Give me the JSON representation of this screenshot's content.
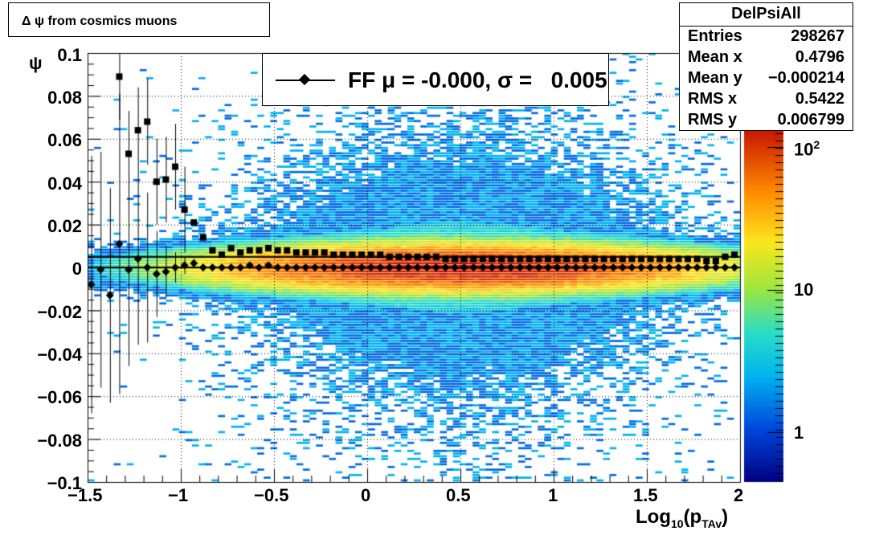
{
  "title": "Δ ψ from cosmics muons",
  "stats": {
    "name": "DelPsiAll",
    "rows": [
      {
        "label": "Entries",
        "value": "298267"
      },
      {
        "label": "Mean x",
        "value": "0.4796"
      },
      {
        "label": "Mean y",
        "value": "−0.000214"
      },
      {
        "label": "RMS x",
        "value": "0.5422"
      },
      {
        "label": "RMS y",
        "value": "0.006799"
      }
    ]
  },
  "legend": {
    "text": "FF μ = -0.000, σ =   0.005"
  },
  "chart_data": {
    "type": "heatmap",
    "xlabel": "Log10(pTAv)",
    "ylabel": "ψ",
    "xlim": [
      -1.5,
      2.0
    ],
    "ylim": [
      -0.1,
      0.1
    ],
    "xticks": [
      "−1.5",
      "−1",
      "−0.5",
      "0",
      "0.5",
      "1",
      "1.5",
      "2"
    ],
    "yticks": [
      "0.1",
      "0.08",
      "0.06",
      "0.04",
      "0.02",
      "0",
      "−0.02",
      "−0.04",
      "−0.06",
      "−0.08",
      "−0.1"
    ],
    "z_scale": "log",
    "z_ticks": [
      "1",
      "10",
      "10^2"
    ],
    "grid": true,
    "density_model": {
      "mean_y": -0.000214,
      "core_sigma_y": 0.005,
      "x_center": 0.5,
      "x_rms": 0.5422,
      "peak_counts": 300
    },
    "series": [
      {
        "name": "FF μ = -0.000, σ =   0.005",
        "marker": "diamond",
        "x": [
          -1.48,
          -1.43,
          -1.38,
          -1.33,
          -1.28,
          -1.23,
          -1.18,
          -1.13,
          -1.08,
          -1.03,
          -0.98,
          -0.93,
          -0.88,
          -0.83,
          -0.78,
          -0.73,
          -0.68,
          -0.63,
          -0.58,
          -0.53,
          -0.48,
          -0.43,
          -0.38,
          -0.33,
          -0.28,
          -0.23,
          -0.18,
          -0.13,
          -0.08,
          -0.03,
          0.02,
          0.07,
          0.12,
          0.17,
          0.22,
          0.27,
          0.32,
          0.37,
          0.42,
          0.47,
          0.52,
          0.57,
          0.62,
          0.67,
          0.72,
          0.77,
          0.82,
          0.87,
          0.92,
          0.97,
          1.02,
          1.07,
          1.12,
          1.17,
          1.22,
          1.27,
          1.32,
          1.37,
          1.42,
          1.47,
          1.52,
          1.57,
          1.62,
          1.67,
          1.72,
          1.77,
          1.82,
          1.87,
          1.92,
          1.97
        ],
        "y": [
          -0.008,
          -0.001,
          -0.013,
          0.011,
          -0.001,
          0.004,
          0.0,
          -0.003,
          -0.002,
          0.0,
          0.001,
          0.002,
          0.0,
          0.0,
          0.0,
          0.0,
          0.0,
          0.001,
          0.0,
          0.001,
          0.0,
          0.0,
          0.0,
          0.0,
          0.0,
          0.0,
          0.0,
          0.0,
          0.0,
          0.0,
          0.0,
          0.0,
          0.0,
          0.0,
          0.0,
          0.0,
          0.0,
          0.0,
          0.0,
          0.0,
          0.0,
          0.0,
          0.0,
          0.0,
          0.0,
          0.0,
          0.0,
          0.0,
          0.0,
          0.0,
          0.0,
          0.0,
          0.0,
          0.0,
          0.0,
          0.0,
          0.0,
          0.0,
          0.0,
          0.0,
          0.0,
          0.0,
          0.0,
          0.0,
          0.0,
          0.0,
          0.0,
          0.0,
          0.0,
          0.0
        ],
        "yerr": [
          0.06,
          0.055,
          0.05,
          0.07,
          0.045,
          0.04,
          0.035,
          0.02,
          0.012,
          0.007,
          0.004,
          0.002,
          0.001,
          0.001,
          0.001,
          0.001,
          0.001,
          0.001,
          0.001,
          0.001,
          0.001,
          0.001,
          0.001,
          0.001,
          0.001,
          0.001,
          0.001,
          0.001,
          0.001,
          0.001,
          0.001,
          0.001,
          0.001,
          0.001,
          0.001,
          0.001,
          0.001,
          0.001,
          0.001,
          0.001,
          0.001,
          0.001,
          0.001,
          0.001,
          0.001,
          0.001,
          0.001,
          0.001,
          0.001,
          0.001,
          0.001,
          0.001,
          0.001,
          0.001,
          0.001,
          0.001,
          0.001,
          0.001,
          0.001,
          0.001,
          0.001,
          0.001,
          0.001,
          0.001,
          0.001,
          0.001,
          0.001,
          0.001,
          0.001,
          0.001
        ]
      },
      {
        "name": "",
        "marker": "square",
        "x": [
          -1.33,
          -1.28,
          -1.23,
          -1.18,
          -1.13,
          -1.08,
          -1.03,
          -0.98,
          -0.93,
          -0.88,
          -0.83,
          -0.78,
          -0.73,
          -0.68,
          -0.63,
          -0.58,
          -0.53,
          -0.48,
          -0.43,
          -0.38,
          -0.33,
          -0.28,
          -0.23,
          -0.18,
          -0.13,
          -0.08,
          -0.03,
          0.02,
          0.07,
          0.12,
          0.17,
          0.22,
          0.27,
          0.32,
          0.37,
          0.42,
          0.47,
          0.52,
          0.57,
          0.62,
          0.67,
          0.72,
          0.77,
          0.82,
          0.87,
          0.92,
          0.97,
          1.02,
          1.07,
          1.12,
          1.17,
          1.22,
          1.27,
          1.32,
          1.37,
          1.42,
          1.47,
          1.52,
          1.57,
          1.62,
          1.67,
          1.72,
          1.77,
          1.82,
          1.87,
          1.92,
          1.97
        ],
        "y": [
          0.089,
          0.053,
          0.064,
          0.068,
          0.04,
          0.041,
          0.047,
          0.027,
          0.021,
          0.014,
          0.008,
          0.006,
          0.009,
          0.007,
          0.008,
          0.008,
          0.009,
          0.008,
          0.008,
          0.007,
          0.007,
          0.007,
          0.007,
          0.006,
          0.006,
          0.006,
          0.006,
          0.006,
          0.006,
          0.005,
          0.005,
          0.005,
          0.005,
          0.005,
          0.005,
          0.004,
          0.004,
          0.004,
          0.004,
          0.004,
          0.004,
          0.004,
          0.004,
          0.004,
          0.004,
          0.004,
          0.004,
          0.004,
          0.004,
          0.004,
          0.004,
          0.004,
          0.004,
          0.004,
          0.004,
          0.004,
          0.004,
          0.004,
          0.004,
          0.004,
          0.004,
          0.004,
          0.004,
          0.003,
          0.003,
          0.005,
          0.006
        ]
      }
    ]
  }
}
